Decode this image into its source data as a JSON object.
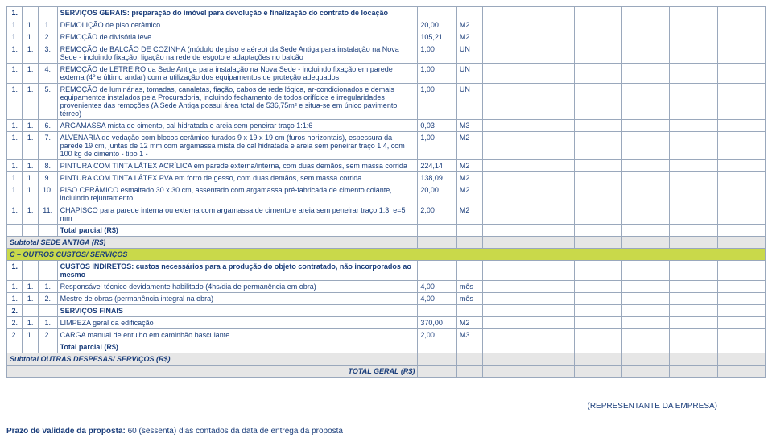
{
  "header": {
    "n1": "1.",
    "title": "SERVIÇOS GERAIS: preparação do imóvel para devolução e finalização do contrato de locação"
  },
  "rows": [
    {
      "a": "1.",
      "b": "1.",
      "c": "1.",
      "desc": "DEMOLIÇÃO de piso cerâmico",
      "qty": "20,00",
      "un": "M2"
    },
    {
      "a": "1.",
      "b": "1.",
      "c": "2.",
      "desc": "REMOÇÃO de divisória leve",
      "qty": "105,21",
      "un": "M2"
    },
    {
      "a": "1.",
      "b": "1.",
      "c": "3.",
      "desc": "REMOÇÃO de BALCÃO DE COZINHA (módulo de piso e aéreo) da Sede Antiga para instalação na Nova Sede - incluindo fixação, ligação na rede de esgoto e adaptações no balcão",
      "qty": "1,00",
      "un": "UN"
    },
    {
      "a": "1.",
      "b": "1.",
      "c": "4.",
      "desc": "REMOÇÃO de LETREIRO da Sede Antiga para instalação na Nova Sede - incluindo fixação em parede externa (4º e último andar) com a utilização dos equipamentos de proteção adequados",
      "qty": "1,00",
      "un": "UN"
    },
    {
      "a": "1.",
      "b": "1.",
      "c": "5.",
      "desc": "REMOÇÃO de luminárias, tomadas, canaletas, fiação, cabos de rede lógica, ar-condicionados e demais equipamentos instalados pela Procuradoria, incluindo fechamento de todos orifícios e irregularidades provenientes das remoções (A Sede Antiga possui área total de 536,75m² e situa-se em único pavimento térreo)",
      "qty": "1,00",
      "un": "UN"
    },
    {
      "a": "1.",
      "b": "1.",
      "c": "6.",
      "desc": "ARGAMASSA mista de cimento, cal hidratada e areia sem peneirar traço 1:1:6",
      "qty": "0,03",
      "un": "M3"
    },
    {
      "a": "1.",
      "b": "1.",
      "c": "7.",
      "desc": "ALVENARIA de vedação com blocos cerâmico furados 9 x 19 x 19 cm (furos horizontais), espessura da parede 19 cm, juntas de 12 mm com argamassa mista de cal hidratada e areia sem peneirar traço 1:4, com 100 kg de cimento - tipo 1 -",
      "qty": "1,00",
      "un": "M2"
    },
    {
      "a": "1.",
      "b": "1.",
      "c": "8.",
      "desc": "PINTURA COM TINTA LÁTEX ACRÍLICA em parede externa/interna, com duas demãos, sem massa corrida",
      "qty": "224,14",
      "un": "M2"
    },
    {
      "a": "1.",
      "b": "1.",
      "c": "9.",
      "desc": "PINTURA COM TINTA LÁTEX PVA em forro de gesso, com duas demãos, sem massa corrida",
      "qty": "138,09",
      "un": "M2"
    },
    {
      "a": "1.",
      "b": "1.",
      "c": "10.",
      "desc": "PISO CERÂMICO esmaltado 30 x 30 cm, assentado com argamassa pré-fabricada de cimento colante, incluindo rejuntamento.",
      "qty": "20,00",
      "un": "M2"
    },
    {
      "a": "1.",
      "b": "1.",
      "c": "11.",
      "desc": "CHAPISCO para parede interna ou externa com argamassa de cimento e areia sem peneirar traço 1:3, e=5 mm",
      "qty": "2,00",
      "un": "M2"
    }
  ],
  "totalparcial1": "Total parcial (R$)",
  "subtotal1": "Subtotal SEDE ANTIGA (R$)",
  "sectionC": "C – OUTROS CUSTOS/ SERVIÇOS",
  "custos": {
    "n1": "1.",
    "title": "CUSTOS INDIRETOS: custos necessários para a produção do objeto contratado, não incorporados ao mesmo"
  },
  "crows": [
    {
      "a": "1.",
      "b": "1.",
      "c": "1.",
      "desc": "Responsável técnico devidamente habilitado (4hs/dia de permanência em obra)",
      "qty": "4,00",
      "un": "mês"
    },
    {
      "a": "1.",
      "b": "1.",
      "c": "2.",
      "desc": "Mestre de obras (permanência integral na obra)",
      "qty": "4,00",
      "un": "mês"
    }
  ],
  "servfinais": {
    "n1": "2.",
    "title": "SERVIÇOS FINAIS"
  },
  "frows": [
    {
      "a": "2.",
      "b": "1.",
      "c": "1.",
      "desc": "LIMPEZA geral da edificação",
      "qty": "370,00",
      "un": "M2"
    },
    {
      "a": "2.",
      "b": "1.",
      "c": "2.",
      "desc": "CARGA manual de entulho em caminhão basculante",
      "qty": "2,00",
      "un": "M3"
    }
  ],
  "totalparcial2": "Total parcial (R$)",
  "subtotal2": "Subtotal OUTRAS DESPESAS/ SERVIÇOS (R$)",
  "totalgeral": "TOTAL GERAL (R$)",
  "rep": "(REPRESENTANTE DA EMPRESA)",
  "validade_bold": "Prazo de validade da proposta:",
  "validade_rest": " 60 (sessenta) dias contados da data de entrega da proposta"
}
